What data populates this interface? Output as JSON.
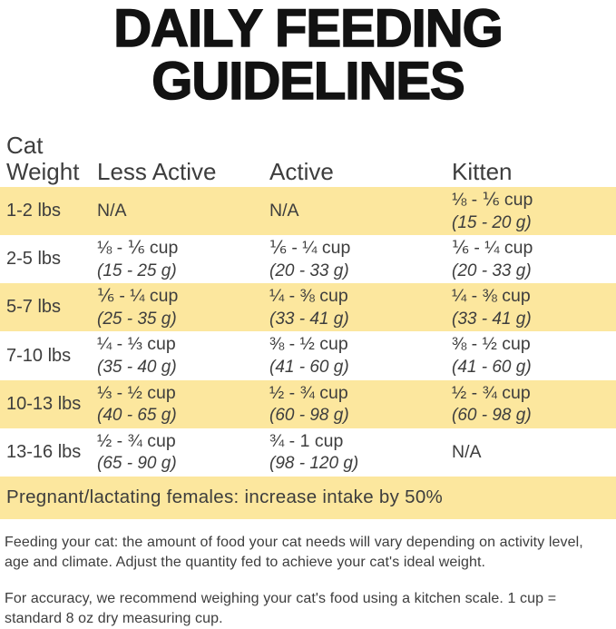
{
  "title": {
    "line1": "DAILY FEEDING",
    "line2": "GUIDELINES"
  },
  "table": {
    "headers": [
      "Cat Weight",
      "Less Active",
      "Active",
      "Kitten"
    ],
    "rows": [
      {
        "weight": "1-2 lbs",
        "less_active": {
          "cups": "N/A",
          "grams": ""
        },
        "active": {
          "cups": "N/A",
          "grams": ""
        },
        "kitten": {
          "cups": "⅛ - ⅙ cup",
          "grams": "(15 - 20 g)"
        }
      },
      {
        "weight": "2-5 lbs",
        "less_active": {
          "cups": "⅛ - ⅙ cup",
          "grams": "(15 - 25 g)"
        },
        "active": {
          "cups": "⅙ - ¼ cup",
          "grams": "(20 - 33 g)"
        },
        "kitten": {
          "cups": "⅙ - ¼ cup",
          "grams": "(20 - 33 g)"
        }
      },
      {
        "weight": "5-7 lbs",
        "less_active": {
          "cups": "⅙ - ¼ cup",
          "grams": "(25 - 35 g)"
        },
        "active": {
          "cups": "¼ - ⅜ cup",
          "grams": "(33 - 41 g)"
        },
        "kitten": {
          "cups": "¼ - ⅜ cup",
          "grams": "(33 - 41 g)"
        }
      },
      {
        "weight": "7-10 lbs",
        "less_active": {
          "cups": "¼ - ⅓ cup",
          "grams": "(35 - 40 g)"
        },
        "active": {
          "cups": "⅜ - ½ cup",
          "grams": "(41 - 60 g)"
        },
        "kitten": {
          "cups": "⅜ - ½ cup",
          "grams": "(41 - 60 g)"
        }
      },
      {
        "weight": "10-13 lbs",
        "less_active": {
          "cups": "⅓ - ½ cup",
          "grams": "(40 - 65 g)"
        },
        "active": {
          "cups": "½ - ¾ cup",
          "grams": "(60 - 98 g)"
        },
        "kitten": {
          "cups": "½ - ¾ cup",
          "grams": "(60 - 98 g)"
        }
      },
      {
        "weight": "13-16 lbs",
        "less_active": {
          "cups": "½ - ¾ cup",
          "grams": "(65 - 90 g)"
        },
        "active": {
          "cups": "¾ - 1 cup",
          "grams": "(98 - 120 g)"
        },
        "kitten": {
          "cups": "N/A",
          "grams": ""
        }
      }
    ],
    "note_row": "Pregnant/lactating females: increase intake by 50%"
  },
  "footnotes": [
    "Feeding your cat: the amount of food your cat needs will vary depending on activity level, age and climate. Adjust the quantity fed to achieve your cat's ideal weight.",
    "For accuracy, we recommend weighing your cat's food using a kitchen scale. 1 cup = standard 8 oz dry measuring cup."
  ],
  "colors": {
    "highlight_yellow": "#FCE79E",
    "text_dark": "#3D3D3D",
    "title_black": "#121212"
  }
}
